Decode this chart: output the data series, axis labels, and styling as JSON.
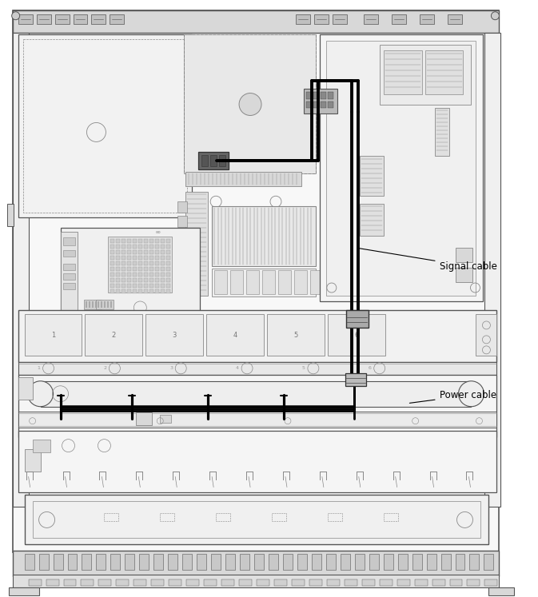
{
  "bg_color": "#ffffff",
  "lc": "#888888",
  "lc_dark": "#555555",
  "cable_color": "#000000",
  "lg": "#d8d8d8",
  "mg": "#b0b0b0",
  "fg": "#eeeeee",
  "label_signal": "Signal cable",
  "label_power": "Power cable",
  "fig_width": 6.73,
  "fig_height": 7.47,
  "dpi": 100
}
